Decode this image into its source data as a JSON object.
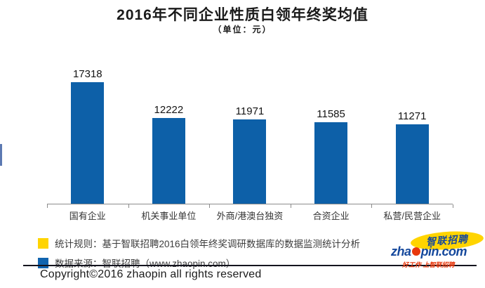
{
  "chart_data": {
    "type": "bar",
    "title": "2016年不同企业性质白领年终奖均值",
    "subtitle": "（单位：元）",
    "unit": "元",
    "categories": [
      "国有企业",
      "机关事业单位",
      "外商/港澳台独资",
      "合资企业",
      "私营/民营企业"
    ],
    "values": [
      17318,
      12222,
      11971,
      11585,
      11271
    ],
    "bar_color": "#0d60a8",
    "axis_color": "#8c8c8c",
    "y_axis_visible": false,
    "ylim": [
      0,
      17500
    ],
    "grid": false,
    "data_labels": true,
    "legend_position": "none"
  },
  "footnotes": {
    "items": [
      {
        "swatch_color": "#ffd400",
        "text": "统计规则：基于智联招聘2016白领年终奖调研数据库的数据监测统计分析"
      },
      {
        "swatch_color": "#1164af",
        "text": "数据来源：智联招聘（www.zhaopin.com）"
      }
    ]
  },
  "logo": {
    "brand_cn": "智联招聘",
    "domain_prefix": "zha",
    "domain_suffix": "pin.com",
    "tagline": "好工作 上智联招聘",
    "brand_blue": "#15489c",
    "brand_yellow": "#ffd400",
    "brand_red": "#e8380d"
  },
  "footer": {
    "copyright": "Copyright©2016 zhaopin all rights reserved"
  }
}
